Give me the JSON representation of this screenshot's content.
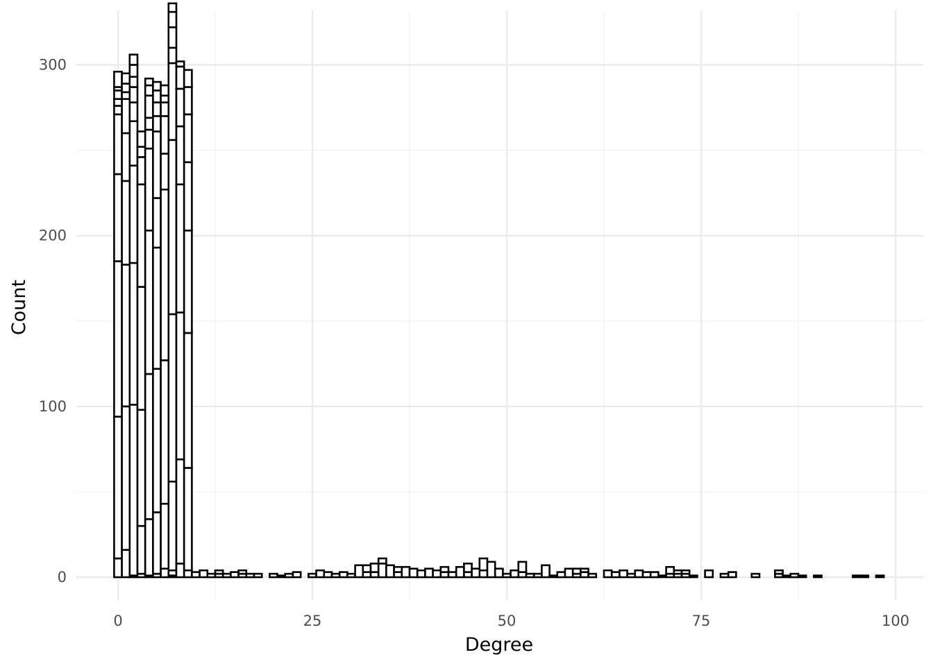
{
  "chart_data": {
    "type": "bar",
    "subtype": "stacked histogram",
    "title": "",
    "xlabel": "Degree",
    "ylabel": "Count",
    "xlim": [
      -1,
      100.5
    ],
    "ylim": [
      -15,
      330
    ],
    "x_ticks": [
      0,
      25,
      50,
      75,
      100
    ],
    "y_ticks": [
      0,
      100,
      200,
      300
    ],
    "grid": true,
    "bar_fill": "#ffffff",
    "bar_outline": "#000000",
    "bin_width": 1,
    "bins": [
      {
        "x": 0,
        "segments": [
          11,
          83,
          91,
          51,
          35,
          5,
          4,
          5,
          2,
          9
        ]
      },
      {
        "x": 1,
        "segments": [
          16,
          84,
          83,
          49,
          28,
          20,
          4,
          5,
          6
        ]
      },
      {
        "x": 2,
        "segments": [
          1,
          100,
          83,
          57,
          26,
          11,
          9,
          6,
          7,
          6
        ]
      },
      {
        "x": 3,
        "segments": [
          2,
          28,
          68,
          72,
          60,
          16,
          6,
          9
        ]
      },
      {
        "x": 4,
        "segments": [
          1,
          33,
          85,
          84,
          48,
          11,
          7,
          13,
          6,
          4
        ]
      },
      {
        "x": 5,
        "segments": [
          2,
          36,
          84,
          71,
          29,
          39,
          9,
          8,
          7,
          5
        ]
      },
      {
        "x": 6,
        "segments": [
          5,
          38,
          84,
          100,
          21,
          22,
          8,
          4,
          6
        ]
      },
      {
        "x": 7,
        "segments": [
          1,
          3,
          52,
          98,
          102,
          45,
          9,
          12,
          9,
          5
        ]
      },
      {
        "x": 8,
        "segments": [
          8,
          61,
          86,
          75,
          34,
          22,
          13,
          3
        ]
      },
      {
        "x": 9,
        "segments": [
          4,
          60,
          79,
          60,
          40,
          28,
          16,
          10
        ]
      },
      {
        "x": 10,
        "segments": [
          3
        ]
      },
      {
        "x": 11,
        "segments": [
          4
        ]
      },
      {
        "x": 12,
        "segments": [
          2
        ]
      },
      {
        "x": 13,
        "segments": [
          2,
          2
        ]
      },
      {
        "x": 14,
        "segments": [
          2
        ]
      },
      {
        "x": 15,
        "segments": [
          3
        ]
      },
      {
        "x": 16,
        "segments": [
          2,
          2
        ]
      },
      {
        "x": 17,
        "segments": [
          2
        ]
      },
      {
        "x": 18,
        "segments": [
          2
        ]
      },
      {
        "x": 20,
        "segments": [
          2
        ]
      },
      {
        "x": 21,
        "segments": [
          1
        ]
      },
      {
        "x": 22,
        "segments": [
          2
        ]
      },
      {
        "x": 23,
        "segments": [
          3
        ]
      },
      {
        "x": 25,
        "segments": [
          2
        ]
      },
      {
        "x": 26,
        "segments": [
          4
        ]
      },
      {
        "x": 27,
        "segments": [
          3
        ]
      },
      {
        "x": 28,
        "segments": [
          2
        ]
      },
      {
        "x": 29,
        "segments": [
          3
        ]
      },
      {
        "x": 30,
        "segments": [
          2
        ]
      },
      {
        "x": 31,
        "segments": [
          7
        ]
      },
      {
        "x": 32,
        "segments": [
          3,
          4
        ]
      },
      {
        "x": 33,
        "segments": [
          3,
          5
        ]
      },
      {
        "x": 34,
        "segments": [
          8,
          3
        ]
      },
      {
        "x": 35,
        "segments": [
          7
        ]
      },
      {
        "x": 36,
        "segments": [
          3,
          3
        ]
      },
      {
        "x": 37,
        "segments": [
          6
        ]
      },
      {
        "x": 38,
        "segments": [
          5
        ]
      },
      {
        "x": 39,
        "segments": [
          4
        ]
      },
      {
        "x": 40,
        "segments": [
          5
        ]
      },
      {
        "x": 41,
        "segments": [
          4
        ]
      },
      {
        "x": 42,
        "segments": [
          3,
          3
        ]
      },
      {
        "x": 43,
        "segments": [
          3
        ]
      },
      {
        "x": 44,
        "segments": [
          6
        ]
      },
      {
        "x": 45,
        "segments": [
          3,
          5
        ]
      },
      {
        "x": 46,
        "segments": [
          5
        ]
      },
      {
        "x": 47,
        "segments": [
          4,
          7
        ]
      },
      {
        "x": 48,
        "segments": [
          9
        ]
      },
      {
        "x": 49,
        "segments": [
          5
        ]
      },
      {
        "x": 50,
        "segments": [
          2
        ]
      },
      {
        "x": 51,
        "segments": [
          4
        ]
      },
      {
        "x": 52,
        "segments": [
          3,
          6
        ]
      },
      {
        "x": 53,
        "segments": [
          2
        ]
      },
      {
        "x": 54,
        "segments": [
          2
        ]
      },
      {
        "x": 55,
        "segments": [
          7
        ]
      },
      {
        "x": 56,
        "segments": [
          1
        ]
      },
      {
        "x": 57,
        "segments": [
          3
        ]
      },
      {
        "x": 58,
        "segments": [
          5
        ]
      },
      {
        "x": 59,
        "segments": [
          2,
          3
        ]
      },
      {
        "x": 60,
        "segments": [
          3,
          2
        ]
      },
      {
        "x": 61,
        "segments": [
          2
        ]
      },
      {
        "x": 63,
        "segments": [
          4
        ]
      },
      {
        "x": 64,
        "segments": [
          3
        ]
      },
      {
        "x": 65,
        "segments": [
          4
        ]
      },
      {
        "x": 66,
        "segments": [
          2
        ]
      },
      {
        "x": 67,
        "segments": [
          4
        ]
      },
      {
        "x": 68,
        "segments": [
          3
        ]
      },
      {
        "x": 69,
        "segments": [
          3
        ]
      },
      {
        "x": 70,
        "segments": [
          1
        ]
      },
      {
        "x": 71,
        "segments": [
          2,
          4
        ]
      },
      {
        "x": 72,
        "segments": [
          2,
          2
        ]
      },
      {
        "x": 73,
        "segments": [
          2,
          2
        ]
      },
      {
        "x": 74,
        "segments": [
          1
        ]
      },
      {
        "x": 76,
        "segments": [
          4
        ]
      },
      {
        "x": 78,
        "segments": [
          2
        ]
      },
      {
        "x": 79,
        "segments": [
          3
        ]
      },
      {
        "x": 82,
        "segments": [
          2
        ]
      },
      {
        "x": 85,
        "segments": [
          2,
          2
        ]
      },
      {
        "x": 86,
        "segments": [
          1
        ]
      },
      {
        "x": 87,
        "segments": [
          2
        ]
      },
      {
        "x": 88,
        "segments": [
          1
        ]
      },
      {
        "x": 90,
        "segments": [
          1
        ]
      },
      {
        "x": 95,
        "segments": [
          1
        ]
      },
      {
        "x": 96,
        "segments": [
          1
        ]
      },
      {
        "x": 98,
        "segments": [
          1
        ]
      }
    ]
  }
}
